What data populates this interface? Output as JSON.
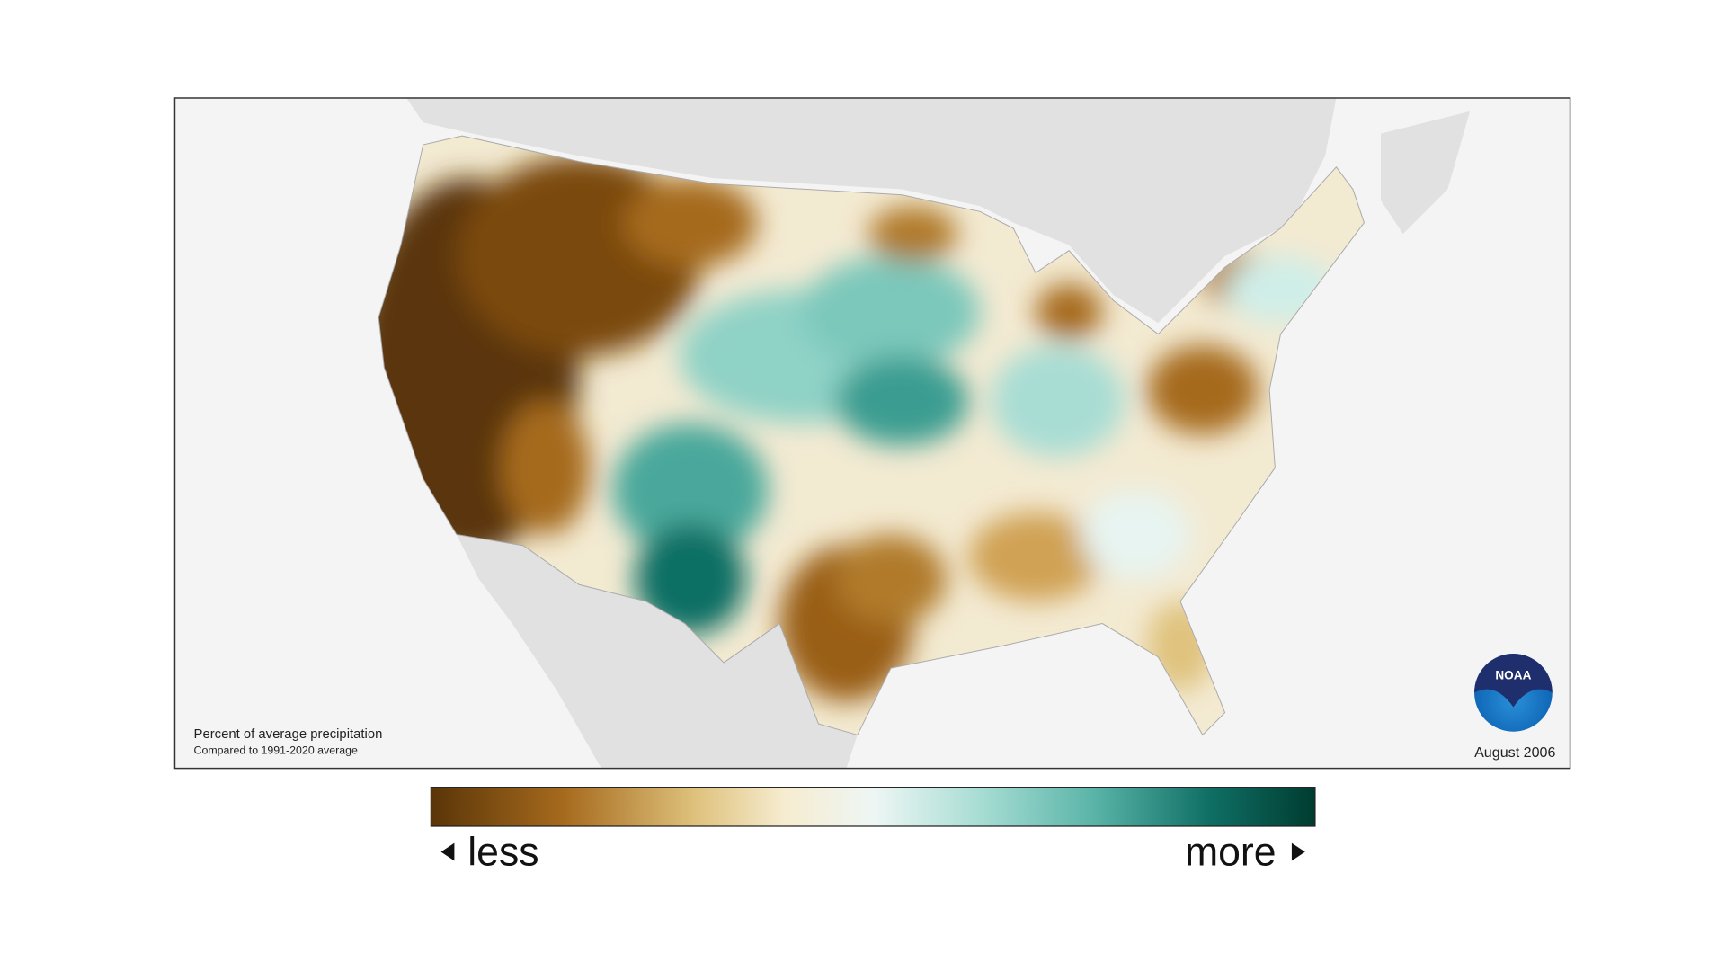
{
  "map": {
    "caption": {
      "title": "Percent of average precipitation",
      "subtitle": "Compared to 1991-2020 average"
    },
    "date": "August 2006",
    "logo": "NOAA"
  },
  "legend": {
    "low_label": "less",
    "high_label": "more"
  }
}
